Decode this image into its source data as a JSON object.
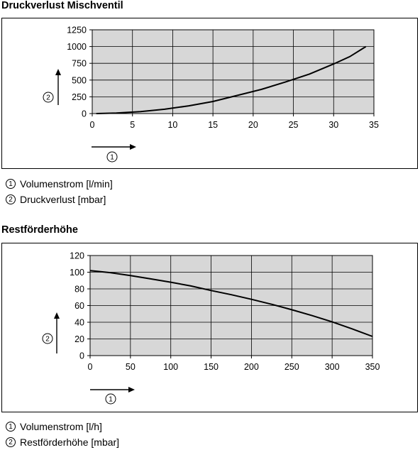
{
  "chart_data": [
    {
      "type": "line",
      "title": "Druckverlust Mischventil",
      "x_axis_marker": "1",
      "y_axis_marker": "2",
      "x_ticks": [
        0,
        5,
        10,
        15,
        20,
        25,
        30,
        35
      ],
      "y_ticks": [
        0,
        250,
        500,
        750,
        1000,
        1250
      ],
      "xlim": [
        0,
        35
      ],
      "ylim": [
        0,
        1250
      ],
      "grid": true,
      "series": [
        {
          "x": [
            0.5,
            3,
            6,
            9,
            12,
            15,
            18,
            21,
            24,
            27,
            30,
            32,
            34
          ],
          "values": [
            0,
            8,
            30,
            65,
            115,
            180,
            270,
            360,
            470,
            590,
            740,
            850,
            1000
          ]
        }
      ],
      "legend": [
        {
          "marker": "1",
          "label": "Volumenstrom [l/min]"
        },
        {
          "marker": "2",
          "label": "Druckverlust [mbar]"
        }
      ]
    },
    {
      "type": "line",
      "title": "Restförderhöhe",
      "x_axis_marker": "1",
      "y_axis_marker": "2",
      "x_ticks": [
        0,
        50,
        100,
        150,
        200,
        250,
        300,
        350
      ],
      "y_ticks": [
        0,
        20,
        40,
        60,
        80,
        100,
        120
      ],
      "xlim": [
        0,
        350
      ],
      "ylim": [
        0,
        120
      ],
      "grid": true,
      "series": [
        {
          "x": [
            0,
            25,
            50,
            75,
            100,
            125,
            150,
            175,
            200,
            225,
            250,
            275,
            300,
            325,
            350
          ],
          "values": [
            102,
            99.5,
            96,
            92,
            88,
            83.5,
            78,
            73,
            67.5,
            61.5,
            55,
            48,
            40.5,
            32,
            23
          ]
        }
      ],
      "legend": [
        {
          "marker": "1",
          "label": "Volumenstrom [l/h]"
        },
        {
          "marker": "2",
          "label": "Restförderhöhe [mbar]"
        }
      ]
    }
  ]
}
